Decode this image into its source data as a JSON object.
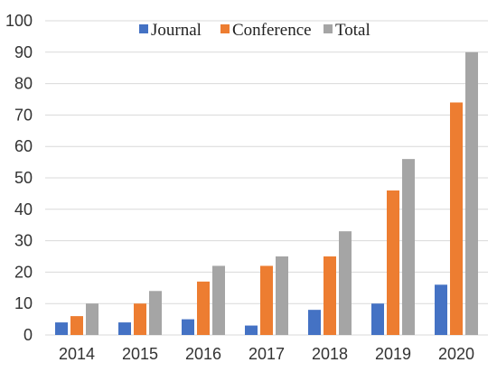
{
  "chart_data": {
    "type": "bar",
    "categories": [
      "2014",
      "2015",
      "2016",
      "2017",
      "2018",
      "2019",
      "2020"
    ],
    "series": [
      {
        "name": "Journal",
        "values": [
          4,
          4,
          5,
          3,
          8,
          10,
          16
        ],
        "color": "#4472C4"
      },
      {
        "name": "Conference",
        "values": [
          6,
          10,
          17,
          22,
          25,
          46,
          74
        ],
        "color": "#ED7D31"
      },
      {
        "name": "Total",
        "values": [
          10,
          14,
          22,
          25,
          33,
          56,
          90
        ],
        "color": "#A5A5A5"
      }
    ],
    "title": "",
    "xlabel": "",
    "ylabel": "",
    "ylim": [
      0,
      100
    ],
    "yticks": [
      "0",
      "10",
      "20",
      "30",
      "40",
      "50",
      "60",
      "70",
      "80",
      "90",
      "100"
    ],
    "grid": true,
    "legend_position": "top-center"
  }
}
